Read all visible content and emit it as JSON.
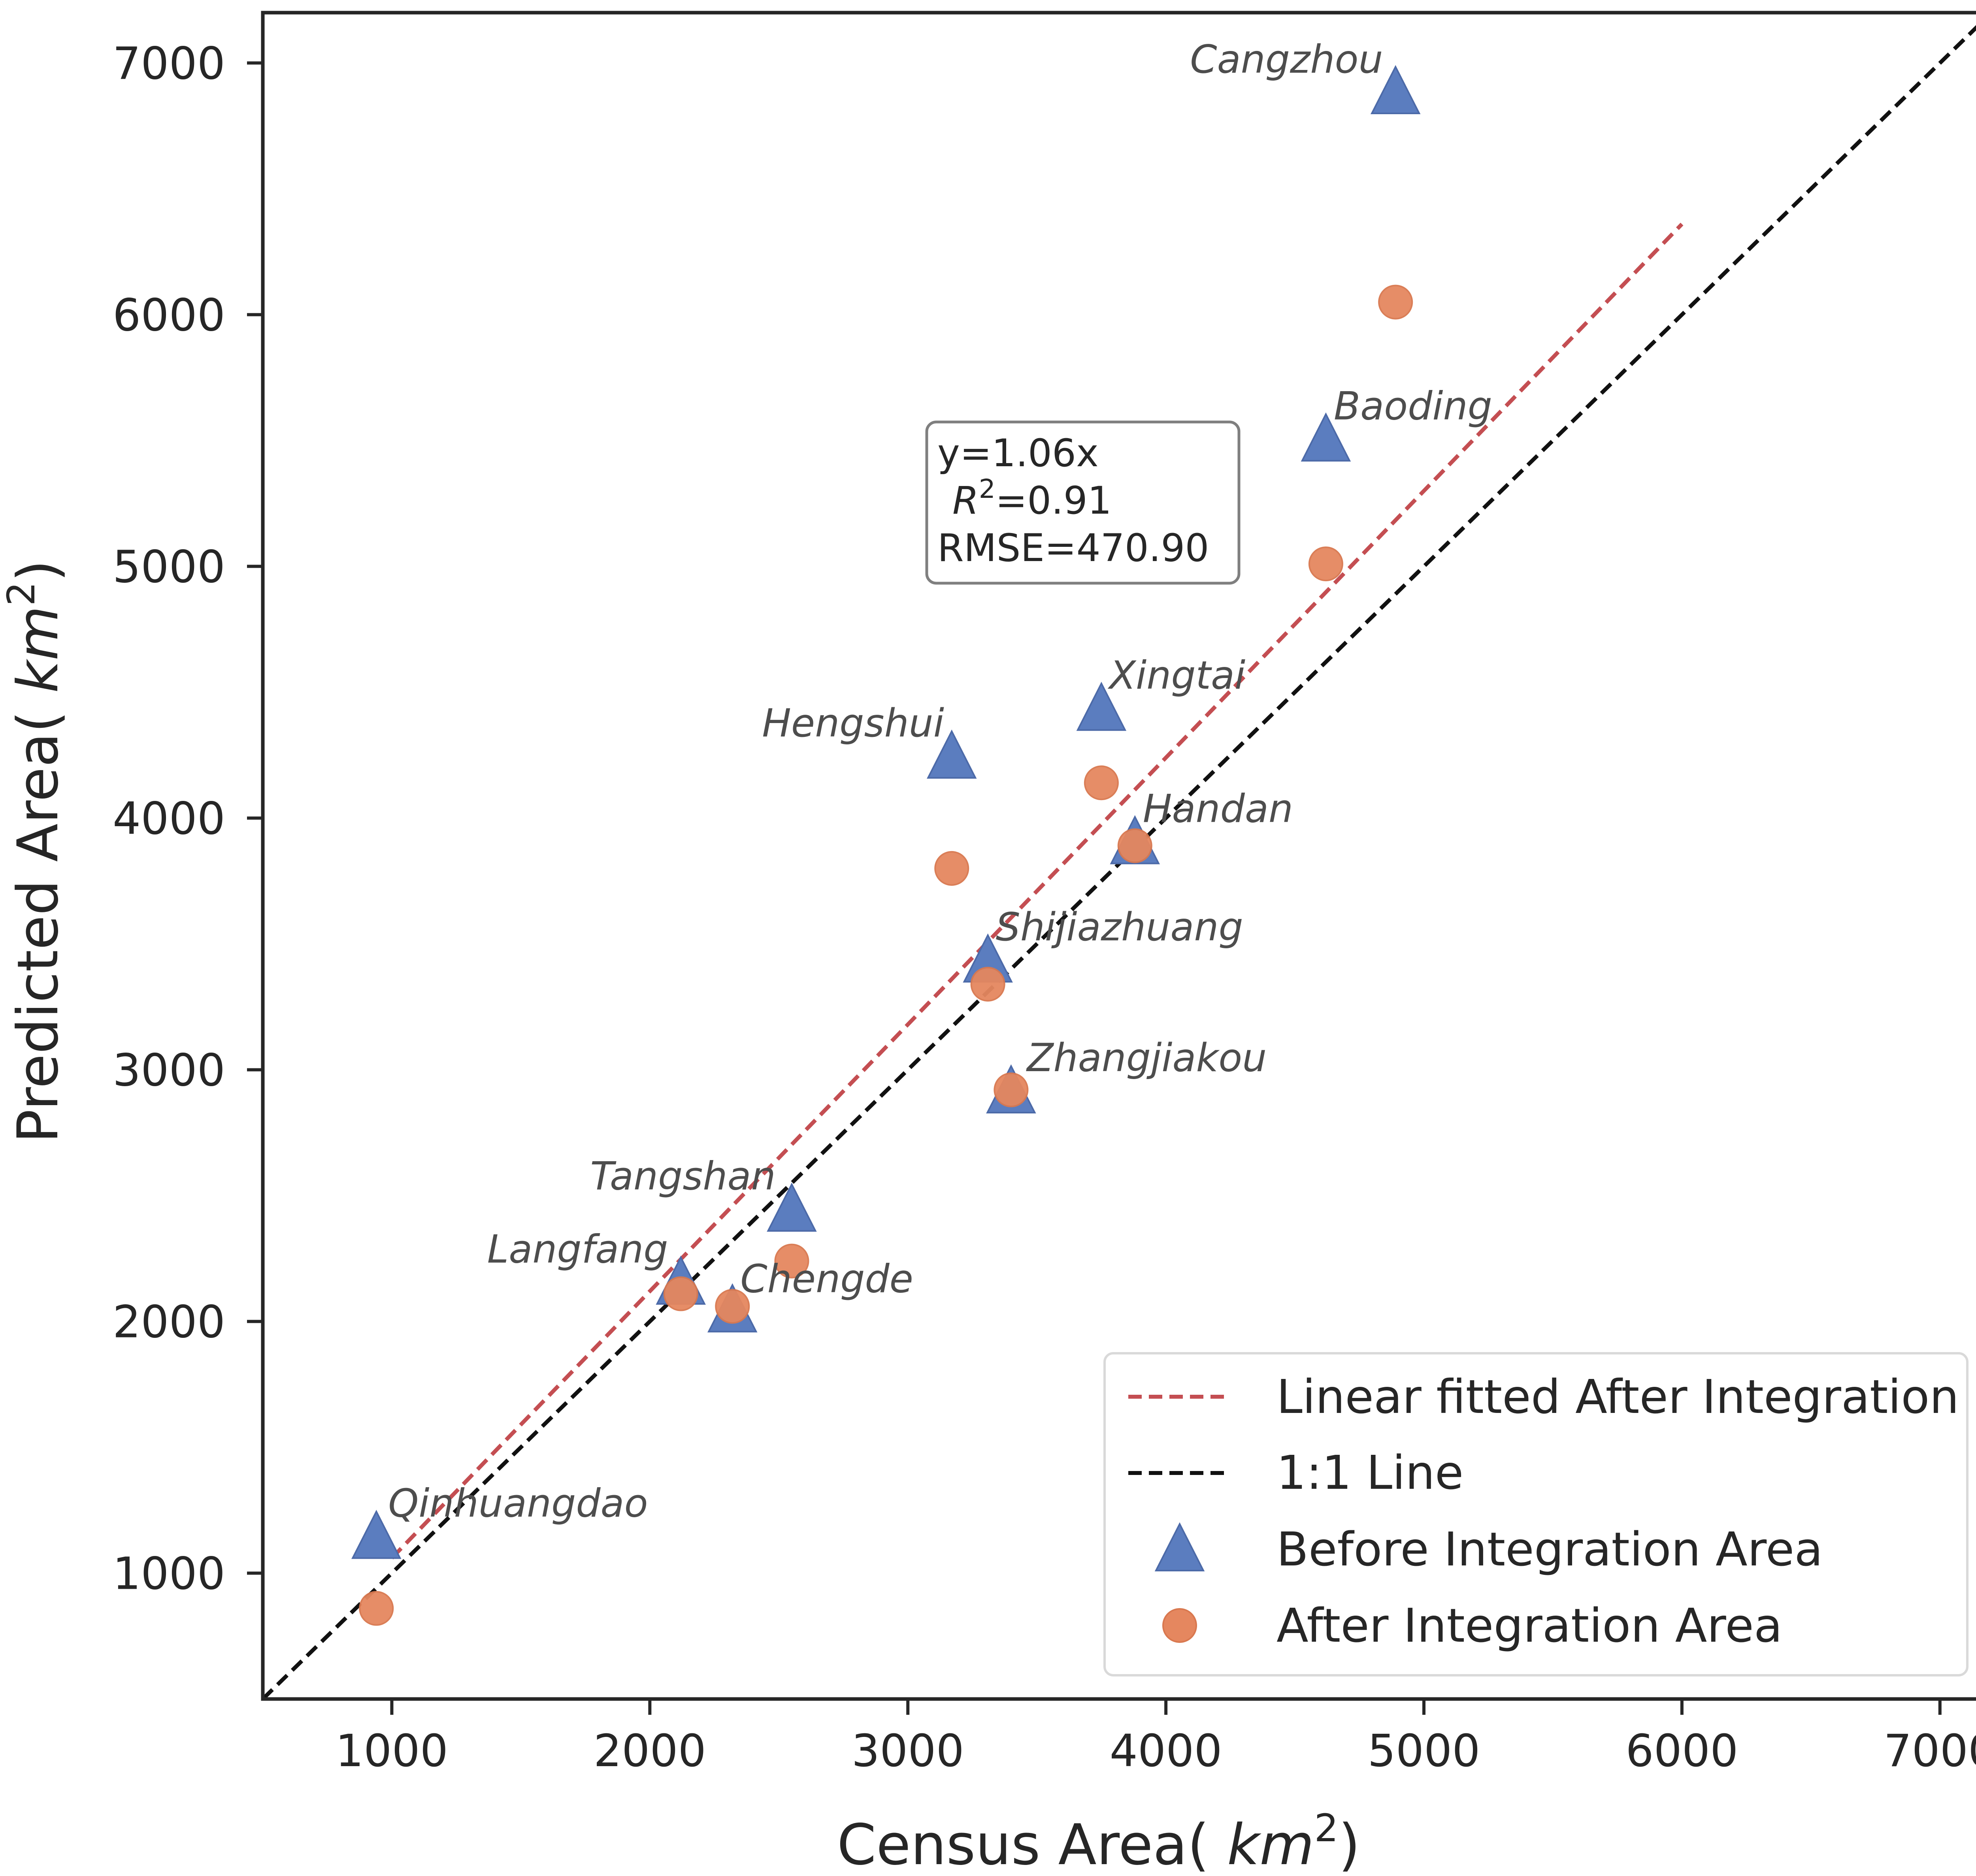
{
  "chart_data": {
    "type": "scatter",
    "xlabel": "Census Area( km²)",
    "ylabel": "Predicted Area( km²)",
    "xlabel_parts": {
      "prefix": "Census Area( ",
      "unit": "km",
      "sup": "2",
      "suffix": ")"
    },
    "ylabel_parts": {
      "prefix": "Predicted Area( ",
      "unit": "km",
      "sup": "2",
      "suffix": ")"
    },
    "xlim": [
      500,
      7250
    ],
    "ylim": [
      500,
      7200
    ],
    "x_ticks": [
      1000,
      2000,
      3000,
      4000,
      5000,
      6000,
      7000
    ],
    "y_ticks": [
      1000,
      2000,
      3000,
      4000,
      5000,
      6000,
      7000
    ],
    "x_tick_labels": [
      "1000",
      "2000",
      "3000",
      "4000",
      "5000",
      "6000",
      "7000"
    ],
    "y_tick_labels": [
      "1000",
      "2000",
      "3000",
      "4000",
      "5000",
      "6000",
      "7000"
    ],
    "grid": false,
    "legend_position": "lower-right",
    "cities": [
      "Cangzhou",
      "Baoding",
      "Xingtai",
      "Hengshui",
      "Handan",
      "Shijiazhuang",
      "Zhangjiakou",
      "Tangshan",
      "Langfang",
      "Chengde",
      "Qinhuangdao"
    ],
    "series": [
      {
        "name": "Before Integration Area",
        "marker": "triangle",
        "color": "#5b7dbf",
        "x": [
          4890,
          4620,
          3750,
          3170,
          3880,
          3310,
          3400,
          2550,
          2120,
          2320,
          940
        ],
        "y": [
          6870,
          5490,
          4420,
          4230,
          3890,
          3420,
          2900,
          2430,
          2140,
          2030,
          1130
        ]
      },
      {
        "name": "After Integration Area",
        "marker": "circle",
        "color": "#e5875f",
        "x": [
          4890,
          4620,
          3750,
          3170,
          3880,
          3310,
          3400,
          2550,
          2120,
          2320,
          940
        ],
        "y": [
          6050,
          5010,
          4140,
          3800,
          3890,
          3340,
          2920,
          2240,
          2110,
          2060,
          860
        ]
      }
    ],
    "lines": [
      {
        "name": "Linear fitted After Integration",
        "slope": 1.06,
        "x_range": [
          1000,
          6000
        ],
        "color": "#c44e52",
        "style": "dashed"
      },
      {
        "name": "1:1 Line",
        "slope": 1.0,
        "x_range": [
          500,
          7250
        ],
        "color": "#111111",
        "style": "dashed"
      }
    ],
    "stats": {
      "equation": "y=1.06x",
      "r2_symbol": "R",
      "r2_sup": "2",
      "r2_value": "=0.91",
      "rmse": "RMSE=470.90"
    },
    "legend": [
      {
        "label": "Linear fitted After Integration",
        "kind": "line",
        "color": "#c44e52"
      },
      {
        "label": "1:1 Line",
        "kind": "line",
        "color": "#111111"
      },
      {
        "label": "Before Integration Area",
        "kind": "triangle",
        "color": "#5b7dbf"
      },
      {
        "label": "After Integration Area",
        "kind": "circle",
        "color": "#e5875f"
      }
    ]
  }
}
